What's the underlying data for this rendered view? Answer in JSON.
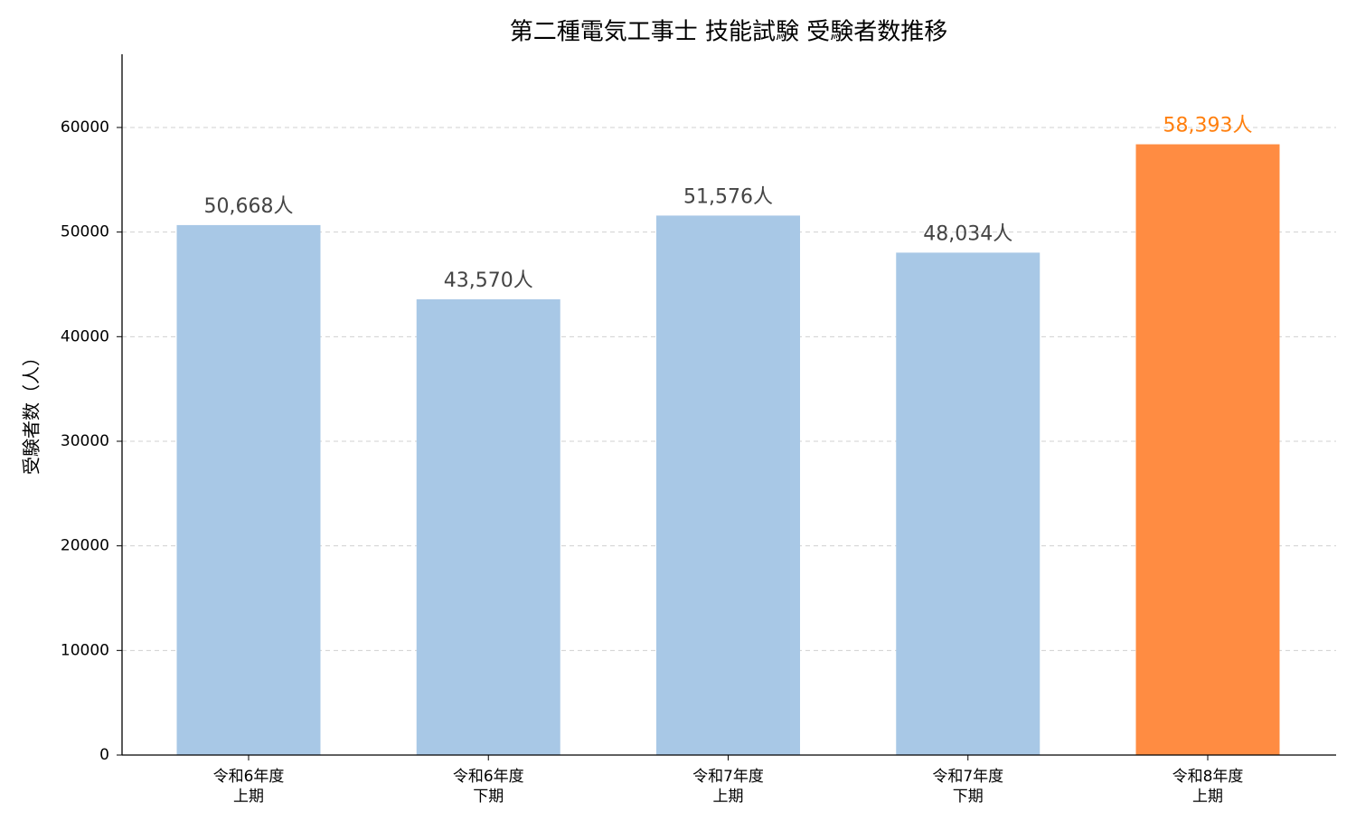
{
  "chart_data": {
    "type": "bar",
    "title": "第二種電気工事士 技能試験 受験者数推移",
    "y_label": "受験者数（人）",
    "categories": [
      [
        "令和6年度",
        "上期"
      ],
      [
        "令和6年度",
        "下期"
      ],
      [
        "令和7年度",
        "上期"
      ],
      [
        "令和7年度",
        "下期"
      ],
      [
        "令和8年度",
        "上期"
      ]
    ],
    "values": [
      50668,
      43570,
      51576,
      48034,
      58393
    ],
    "value_labels": [
      "50,668人",
      "43,570人",
      "51,576人",
      "48,034人",
      "58,393人"
    ],
    "colors": [
      "#a8c8e6",
      "#a8c8e6",
      "#a8c8e6",
      "#a8c8e6",
      "#ff8c42"
    ],
    "label_colors": [
      "#444444",
      "#444444",
      "#444444",
      "#444444",
      "#ff7f0e"
    ],
    "ylim": [
      0,
      67000
    ],
    "yticks": [
      0,
      10000,
      20000,
      30000,
      40000,
      50000,
      60000
    ],
    "grid": true
  }
}
